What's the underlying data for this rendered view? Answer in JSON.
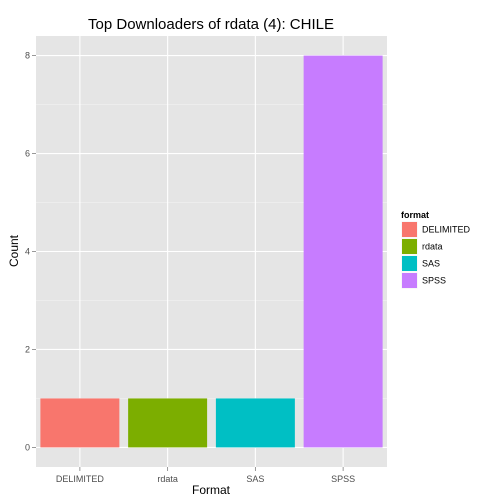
{
  "chart_data": {
    "type": "bar",
    "title": "Top Downloaders of rdata (4):  CHILE",
    "xlabel": "Format",
    "ylabel": "Count",
    "categories": [
      "DELIMITED",
      "rdata",
      "SAS",
      "SPSS"
    ],
    "values": [
      1,
      1,
      1,
      8
    ],
    "colors": [
      "#F8766D",
      "#7CAE00",
      "#00BFC4",
      "#C77CFF"
    ],
    "ylim": [
      -0.4,
      8.4
    ],
    "yticks": [
      0,
      2,
      4,
      6,
      8
    ],
    "grid": true,
    "legend": {
      "title": "format",
      "placement": "right",
      "entries": [
        "DELIMITED",
        "rdata",
        "SAS",
        "SPSS"
      ]
    }
  }
}
